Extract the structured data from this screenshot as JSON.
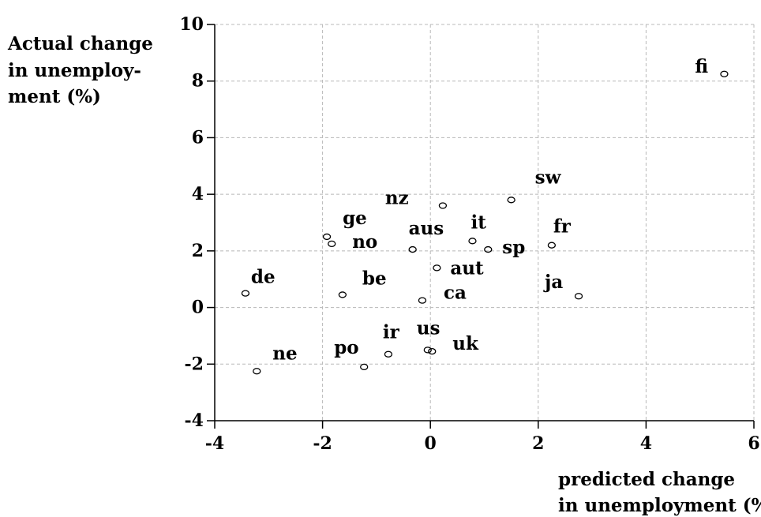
{
  "chart_data": {
    "type": "scatter",
    "ylabel_lines": [
      "Actual change",
      "in unemploy-",
      "ment (%)"
    ],
    "xlabel_lines": [
      "predicted change",
      "in unemployment (%)"
    ],
    "xlim": [
      -4,
      6
    ],
    "ylim": [
      -4,
      10
    ],
    "xticks": [
      -4,
      -2,
      0,
      2,
      4,
      6
    ],
    "yticks": [
      -4,
      -2,
      0,
      2,
      4,
      6,
      8,
      10
    ],
    "grid": true,
    "legend": "none",
    "points": [
      {
        "label": "fi",
        "x": 5.45,
        "y": 8.25
      },
      {
        "label": "sw",
        "x": 1.5,
        "y": 3.8
      },
      {
        "label": "nz",
        "x": 0.23,
        "y": 3.6
      },
      {
        "label": "fr",
        "x": 2.25,
        "y": 2.2
      },
      {
        "label": "ja",
        "x": 2.75,
        "y": 0.4
      },
      {
        "label": "it",
        "x": 0.78,
        "y": 2.35
      },
      {
        "label": "sp",
        "x": 1.07,
        "y": 2.05
      },
      {
        "label": "aus",
        "x": -0.33,
        "y": 2.05
      },
      {
        "label": "aut",
        "x": 0.12,
        "y": 1.4
      },
      {
        "label": "ca",
        "x": -0.15,
        "y": 0.25
      },
      {
        "label": "ge",
        "x": -1.92,
        "y": 2.5
      },
      {
        "label": "no",
        "x": -1.83,
        "y": 2.25
      },
      {
        "label": "be",
        "x": -1.63,
        "y": 0.45
      },
      {
        "label": "de",
        "x": -3.43,
        "y": 0.5
      },
      {
        "label": "us",
        "x": -0.05,
        "y": -1.5
      },
      {
        "label": "uk",
        "x": 0.03,
        "y": -1.55
      },
      {
        "label": "ir",
        "x": -0.78,
        "y": -1.65
      },
      {
        "label": "po",
        "x": -1.23,
        "y": -2.1
      },
      {
        "label": "ne",
        "x": -3.22,
        "y": -2.25
      }
    ]
  },
  "style": {
    "axis_color": "#000000",
    "grid_color": "#b8b8b8",
    "marker_color": "#000000"
  }
}
